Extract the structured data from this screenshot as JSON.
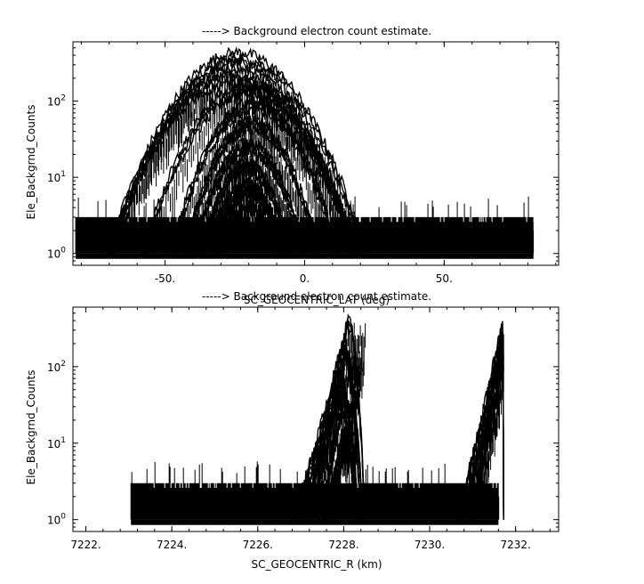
{
  "chart_data": [
    {
      "type": "scatter",
      "title": "-----> Background electron count estimate.",
      "xlabel": "SC_GEOCENTRIC_LAT (deg)",
      "ylabel": "Ele_Backgrnd_Counts",
      "xlim": [
        -83.0,
        91.0
      ],
      "ylim": [
        0.7,
        600
      ],
      "y_scale": "log",
      "x_tick_labels": [
        {
          "value": -50,
          "label": "-50."
        },
        {
          "value": 0,
          "label": "0."
        },
        {
          "value": 50,
          "label": "50."
        }
      ],
      "y_tick_labels": [
        {
          "value": 1,
          "base": "10",
          "exp": "0"
        },
        {
          "value": 10,
          "base": "10",
          "exp": "1"
        },
        {
          "value": 100,
          "base": "10",
          "exp": "2"
        }
      ],
      "noise_band": {
        "x_range": [
          -82.0,
          82.0
        ],
        "base": 1.0,
        "typical_max": 3.0,
        "spike_max": 6.0
      },
      "arcs": [
        {
          "center": -24,
          "half_width": 46,
          "peak": 380
        },
        {
          "center": -25,
          "half_width": 44,
          "peak": 280
        },
        {
          "center": -26,
          "half_width": 45,
          "peak": 190
        },
        {
          "center": -20,
          "half_width": 38,
          "peak": 150
        },
        {
          "center": -18,
          "half_width": 30,
          "peak": 90
        },
        {
          "center": -19,
          "half_width": 24,
          "peak": 50
        },
        {
          "center": -20,
          "half_width": 20,
          "peak": 25
        },
        {
          "center": -21,
          "half_width": 16,
          "peak": 14
        },
        {
          "center": -20,
          "half_width": 12,
          "peak": 7
        }
      ]
    },
    {
      "type": "scatter",
      "title": "-----> Background electron count estimate.",
      "xlabel": "SC_GEOCENTRIC_R (km)",
      "ylabel": "Ele_Backgrnd_Counts",
      "xlim": [
        7221.7,
        7233.0
      ],
      "ylim": [
        0.7,
        600
      ],
      "y_scale": "log",
      "x_tick_labels": [
        {
          "value": 7222,
          "label": "7222."
        },
        {
          "value": 7224,
          "label": "7224."
        },
        {
          "value": 7226,
          "label": "7226."
        },
        {
          "value": 7228,
          "label": "7228."
        },
        {
          "value": 7230,
          "label": "7230."
        },
        {
          "value": 7232,
          "label": "7232."
        }
      ],
      "y_tick_labels": [
        {
          "value": 1,
          "base": "10",
          "exp": "0"
        },
        {
          "value": 10,
          "base": "10",
          "exp": "1"
        },
        {
          "value": 100,
          "base": "10",
          "exp": "2"
        }
      ],
      "noise_band": {
        "x_range": [
          7223.05,
          7231.6
        ],
        "base": 1.0,
        "typical_max": 3.0,
        "spike_max": 6.0
      },
      "ramps": [
        {
          "start": 7226.8,
          "peak_x": 7228.1,
          "end": 7228.5,
          "peak": 380
        },
        {
          "start": 7226.9,
          "peak_x": 7228.0,
          "end": 7228.45,
          "peak": 190
        },
        {
          "start": 7227.0,
          "peak_x": 7228.0,
          "end": 7228.4,
          "peak": 140
        },
        {
          "start": 7227.2,
          "peak_x": 7227.9,
          "end": 7228.35,
          "peak": 60
        },
        {
          "start": 7227.4,
          "peak_x": 7227.95,
          "end": 7228.3,
          "peak": 25
        },
        {
          "start": 7227.5,
          "peak_x": 7228.0,
          "end": 7228.3,
          "peak": 12
        },
        {
          "start": 7230.6,
          "peak_x": 7231.7,
          "end": 7231.72,
          "peak": 360
        },
        {
          "start": 7230.7,
          "peak_x": 7231.7,
          "end": 7231.72,
          "peak": 250
        },
        {
          "start": 7230.9,
          "peak_x": 7231.7,
          "end": 7231.72,
          "peak": 120
        }
      ]
    }
  ]
}
